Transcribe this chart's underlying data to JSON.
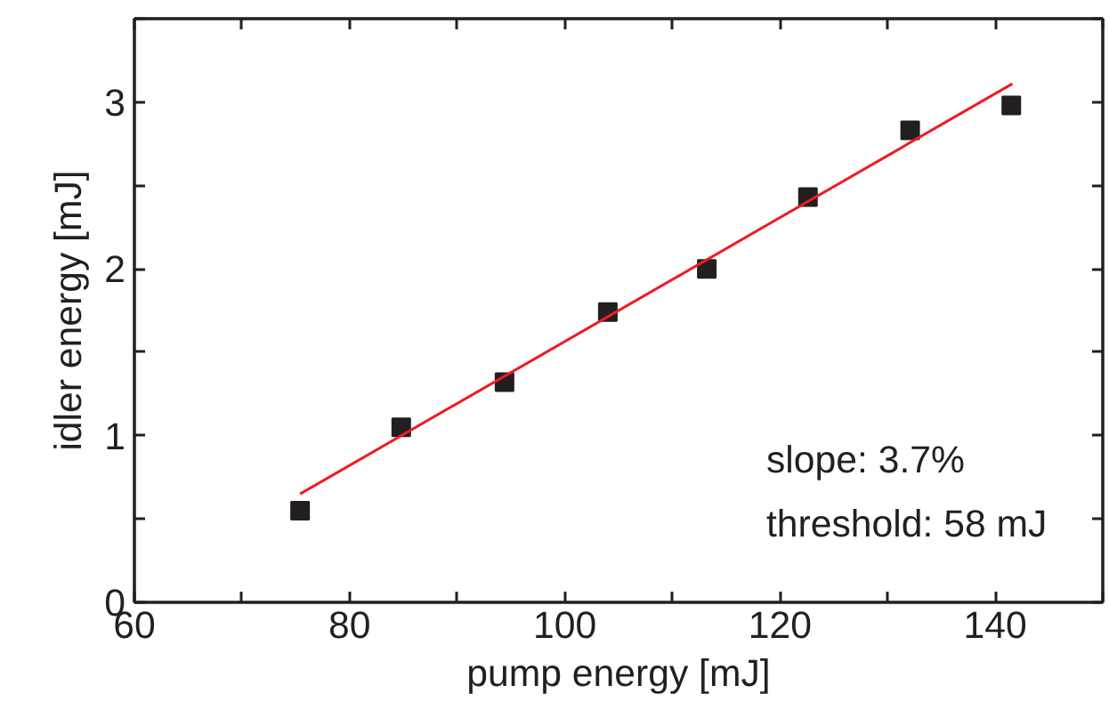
{
  "chart_data": {
    "type": "scatter",
    "xlabel": "pump energy [mJ]",
    "ylabel": "idler energy [mJ]",
    "xlim": [
      60,
      150
    ],
    "ylim": [
      0,
      3.5
    ],
    "xticks": [
      60,
      {
        "value": 70,
        "label": null
      },
      80,
      {
        "value": 90,
        "label": null
      },
      100,
      {
        "value": 110,
        "label": null
      },
      120,
      {
        "value": 130,
        "label": null
      },
      140,
      {
        "value": 150,
        "label": null
      }
    ],
    "yticks": [
      0,
      {
        "value": 0.5,
        "label": null
      },
      1,
      {
        "value": 1.5,
        "label": null
      },
      2,
      {
        "value": 2.5,
        "label": null
      },
      3,
      {
        "value": 3.5,
        "label": null
      }
    ],
    "grid": false,
    "series": [
      {
        "marker": "square",
        "color": "#231f20",
        "x": [
          75.4,
          84.8,
          94.4,
          104.0,
          113.2,
          122.6,
          132.1,
          141.5
        ],
        "values": [
          0.55,
          1.05,
          1.32,
          1.74,
          2.0,
          2.43,
          2.83,
          2.98
        ]
      },
      {
        "type": "line",
        "color": "#ee1c24",
        "x": [
          75.4,
          141.6
        ],
        "values": [
          0.65,
          3.11
        ]
      }
    ],
    "annotations": [
      "slope: 3.7%",
      "threshold: 58 mJ"
    ]
  }
}
